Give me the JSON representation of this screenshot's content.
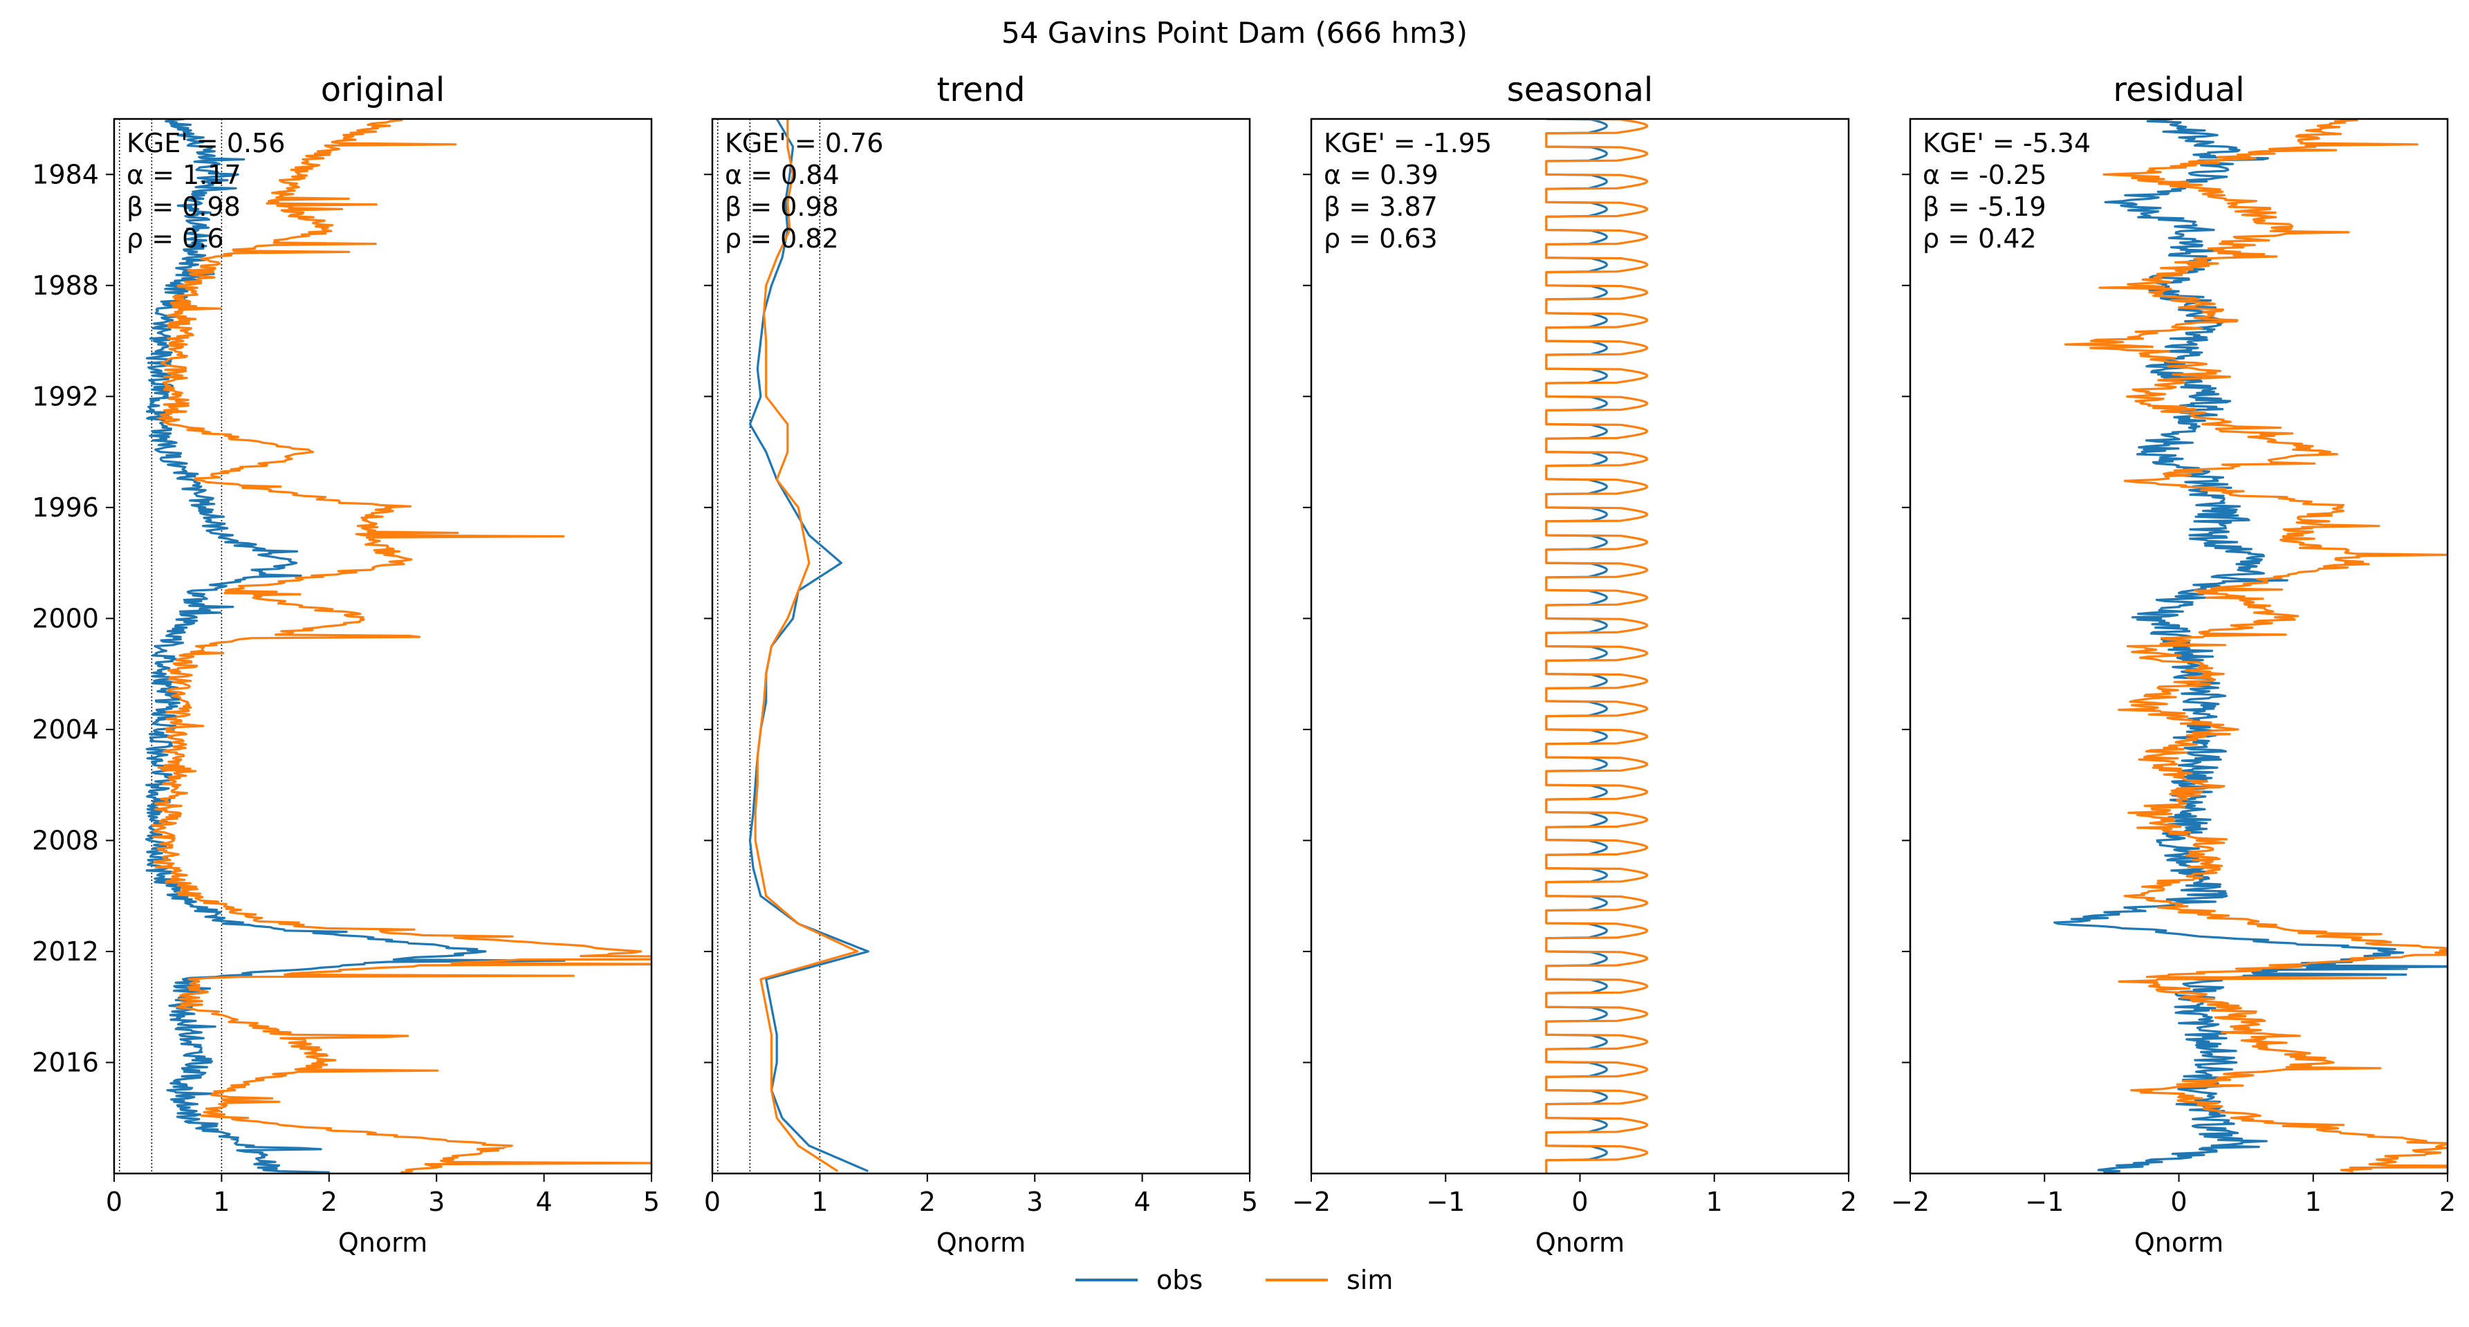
{
  "figure": {
    "suptitle": "54  Gavins Point Dam (666 hm3)"
  },
  "legend": {
    "placement": "bottom-center",
    "entries": [
      {
        "label": "obs",
        "color": "#1f77b4"
      },
      {
        "label": "sim",
        "color": "#ff7f0e"
      }
    ]
  },
  "colors": {
    "obs": "#1f77b4",
    "sim": "#ff7f0e"
  },
  "chart_data": [
    {
      "type": "line",
      "title": "original",
      "xlabel": "Qnorm",
      "ylabel": "",
      "xlim": [
        0,
        5
      ],
      "xticks": [
        "0",
        "1",
        "2",
        "3",
        "4",
        "5"
      ],
      "ylim": [
        1982,
        2020
      ],
      "yticks": [
        "1984",
        "1988",
        "1992",
        "1996",
        "2000",
        "2004",
        "2008",
        "2012",
        "2016"
      ],
      "reference_lines_x": [
        0.05,
        0.35,
        1.0
      ],
      "stats": [
        "KGE' = 0.56",
        "α = 1.17",
        "β = 0.98",
        "ρ = 0.6"
      ],
      "series": [
        {
          "name": "obs",
          "x": [
            1982.0,
            1983.0,
            1984.0,
            1985.0,
            1986.0,
            1987.0,
            1988.0,
            1989.0,
            1990.0,
            1991.0,
            1992.0,
            1993.0,
            1994.0,
            1995.0,
            1996.0,
            1997.0,
            1998.0,
            1999.0,
            2000.0,
            2001.0,
            2002.0,
            2003.0,
            2004.0,
            2005.0,
            2006.0,
            2007.0,
            2008.0,
            2009.0,
            2010.0,
            2011.0,
            2012.0,
            2013.0,
            2014.0,
            2015.0,
            2016.0,
            2017.0,
            2018.0,
            2019.0,
            2020.0
          ],
          "y_note": "values by year",
          "values": [
            0.55,
            0.8,
            0.9,
            0.7,
            0.8,
            0.75,
            0.6,
            0.5,
            0.45,
            0.4,
            0.45,
            0.4,
            0.5,
            0.7,
            0.85,
            1.0,
            1.6,
            0.8,
            0.7,
            0.5,
            0.45,
            0.5,
            0.45,
            0.4,
            0.42,
            0.4,
            0.35,
            0.4,
            0.6,
            1.1,
            3.5,
            0.7,
            0.6,
            0.7,
            0.8,
            0.6,
            0.7,
            1.2,
            1.5
          ]
        },
        {
          "name": "sim",
          "x": [
            1982.0,
            1983.0,
            1984.0,
            1985.0,
            1986.0,
            1987.0,
            1988.0,
            1989.0,
            1990.0,
            1991.0,
            1992.0,
            1993.0,
            1994.0,
            1995.0,
            1996.0,
            1997.0,
            1998.0,
            1999.0,
            2000.0,
            2001.0,
            2002.0,
            2003.0,
            2004.0,
            2005.0,
            2006.0,
            2007.0,
            2008.0,
            2009.0,
            2010.0,
            2011.0,
            2012.0,
            2013.0,
            2014.0,
            2015.0,
            2016.0,
            2017.0,
            2018.0,
            2019.0,
            2020.0
          ],
          "y_note": "values by year",
          "values": [
            2.6,
            2.0,
            1.7,
            1.5,
            2.0,
            0.9,
            0.7,
            0.6,
            0.6,
            0.55,
            0.6,
            0.5,
            1.8,
            0.8,
            2.5,
            2.3,
            2.7,
            1.0,
            2.4,
            0.8,
            0.6,
            0.6,
            0.6,
            0.55,
            0.5,
            0.5,
            0.45,
            0.5,
            0.7,
            1.5,
            5.0,
            0.8,
            0.7,
            1.6,
            2.0,
            1.0,
            0.9,
            3.6,
            2.7
          ]
        }
      ]
    },
    {
      "type": "line",
      "title": "trend",
      "xlabel": "Qnorm",
      "ylabel": "",
      "xlim": [
        0,
        5
      ],
      "xticks": [
        "0",
        "1",
        "2",
        "3",
        "4",
        "5"
      ],
      "ylim": [
        1982,
        2020
      ],
      "yticks": [
        "1984",
        "1988",
        "1992",
        "1996",
        "2000",
        "2004",
        "2008",
        "2012",
        "2016"
      ],
      "reference_lines_x": [
        0.05,
        0.35,
        1.0
      ],
      "stats": [
        "KGE' = 0.76",
        "α = 0.84",
        "β = 0.98",
        "ρ = 0.82"
      ],
      "series": [
        {
          "name": "obs",
          "x": [
            1982.0,
            1983.0,
            1984.0,
            1985.0,
            1986.0,
            1987.0,
            1988.0,
            1989.0,
            1990.0,
            1991.0,
            1992.0,
            1993.0,
            1994.0,
            1995.0,
            1996.0,
            1997.0,
            1998.0,
            1999.0,
            2000.0,
            2001.0,
            2002.0,
            2003.0,
            2004.0,
            2005.0,
            2006.0,
            2007.0,
            2008.0,
            2009.0,
            2010.0,
            2011.0,
            2012.0,
            2013.0,
            2014.0,
            2015.0,
            2016.0,
            2017.0,
            2018.0,
            2019.0,
            2020.0
          ],
          "values": [
            0.6,
            0.75,
            0.72,
            0.68,
            0.7,
            0.65,
            0.55,
            0.48,
            0.45,
            0.42,
            0.45,
            0.35,
            0.5,
            0.6,
            0.75,
            0.9,
            1.2,
            0.8,
            0.75,
            0.55,
            0.5,
            0.5,
            0.45,
            0.42,
            0.4,
            0.38,
            0.35,
            0.38,
            0.45,
            0.8,
            1.45,
            0.5,
            0.55,
            0.6,
            0.6,
            0.55,
            0.65,
            0.9,
            1.5
          ]
        },
        {
          "name": "sim",
          "x": [
            1982.0,
            1983.0,
            1984.0,
            1985.0,
            1986.0,
            1987.0,
            1988.0,
            1989.0,
            1990.0,
            1991.0,
            1992.0,
            1993.0,
            1994.0,
            1995.0,
            1996.0,
            1997.0,
            1998.0,
            1999.0,
            2000.0,
            2001.0,
            2002.0,
            2003.0,
            2004.0,
            2005.0,
            2006.0,
            2007.0,
            2008.0,
            2009.0,
            2010.0,
            2011.0,
            2012.0,
            2013.0,
            2014.0,
            2015.0,
            2016.0,
            2017.0,
            2018.0,
            2019.0,
            2020.0
          ],
          "values": [
            0.7,
            0.7,
            0.75,
            0.7,
            0.72,
            0.6,
            0.5,
            0.48,
            0.5,
            0.5,
            0.5,
            0.7,
            0.7,
            0.6,
            0.8,
            0.85,
            0.9,
            0.8,
            0.7,
            0.55,
            0.5,
            0.48,
            0.45,
            0.42,
            0.42,
            0.4,
            0.4,
            0.45,
            0.5,
            0.8,
            1.35,
            0.45,
            0.5,
            0.55,
            0.55,
            0.55,
            0.6,
            0.8,
            1.2
          ]
        }
      ]
    },
    {
      "type": "line",
      "title": "seasonal",
      "xlabel": "Qnorm",
      "ylabel": "",
      "xlim": [
        -2,
        2
      ],
      "xticks": [
        "−2",
        "−1",
        "0",
        "1",
        "2"
      ],
      "ylim": [
        1982,
        2020
      ],
      "reference_lines_x": [],
      "stats": [
        "KGE' = -1.95",
        "α = 0.39",
        "β = 3.87",
        "ρ = 0.63"
      ],
      "series": [
        {
          "name": "obs",
          "note": "annual cycle",
          "min": -0.25,
          "max": 0.2
        },
        {
          "name": "sim",
          "note": "annual cycle",
          "min": -0.25,
          "max": 0.5
        }
      ]
    },
    {
      "type": "line",
      "title": "residual",
      "xlabel": "Qnorm",
      "ylabel": "",
      "xlim": [
        -2,
        2
      ],
      "xticks": [
        "−2",
        "−1",
        "0",
        "1",
        "2"
      ],
      "ylim": [
        1982,
        2020
      ],
      "reference_lines_x": [],
      "stats": [
        "KGE' = -5.34",
        "α = -0.25",
        "β = -5.19",
        "ρ = 0.42"
      ],
      "series": [
        {
          "name": "obs",
          "x": [
            1982.0,
            1983.0,
            1984.0,
            1985.0,
            1986.0,
            1987.0,
            1988.0,
            1989.0,
            1990.0,
            1991.0,
            1992.0,
            1993.0,
            1994.0,
            1995.0,
            1996.0,
            1997.0,
            1998.0,
            1999.0,
            2000.0,
            2001.0,
            2002.0,
            2003.0,
            2004.0,
            2005.0,
            2006.0,
            2007.0,
            2008.0,
            2009.0,
            2010.0,
            2011.0,
            2012.0,
            2013.0,
            2014.0,
            2015.0,
            2016.0,
            2017.0,
            2018.0,
            2019.0,
            2020.0
          ],
          "values": [
            -0.1,
            0.3,
            0.2,
            -0.4,
            0.1,
            0.1,
            -0.1,
            0.2,
            0.1,
            -0.1,
            0.2,
            0.1,
            -0.2,
            0.2,
            0.3,
            0.2,
            0.6,
            0.1,
            -0.2,
            0.1,
            0.1,
            0.2,
            0.1,
            0.2,
            0.1,
            0.1,
            0.0,
            0.1,
            0.2,
            -0.9,
            1.7,
            0.2,
            0.1,
            0.2,
            0.3,
            0.1,
            0.2,
            0.4,
            -0.6
          ]
        },
        {
          "name": "sim",
          "x": [
            1982.0,
            1983.0,
            1984.0,
            1985.0,
            1986.0,
            1987.0,
            1988.0,
            1989.0,
            1990.0,
            1991.0,
            1992.0,
            1993.0,
            1994.0,
            1995.0,
            1996.0,
            1997.0,
            1998.0,
            1999.0,
            2000.0,
            2001.0,
            2002.0,
            2003.0,
            2004.0,
            2005.0,
            2006.0,
            2007.0,
            2008.0,
            2009.0,
            2010.0,
            2011.0,
            2012.0,
            2013.0,
            2014.0,
            2015.0,
            2016.0,
            2017.0,
            2018.0,
            2019.0,
            2020.0
          ],
          "values": [
            1.2,
            0.9,
            -0.3,
            0.5,
            0.7,
            0.2,
            -0.3,
            0.3,
            -0.5,
            0.2,
            -0.3,
            0.3,
            1.0,
            -0.3,
            1.2,
            0.8,
            1.4,
            0.2,
            0.8,
            -0.3,
            0.3,
            -0.3,
            0.3,
            -0.2,
            0.2,
            -0.2,
            0.2,
            0.2,
            -0.3,
            0.5,
            2.0,
            -0.3,
            0.4,
            0.5,
            1.0,
            -0.2,
            0.5,
            2.0,
            1.2
          ]
        }
      ]
    }
  ]
}
